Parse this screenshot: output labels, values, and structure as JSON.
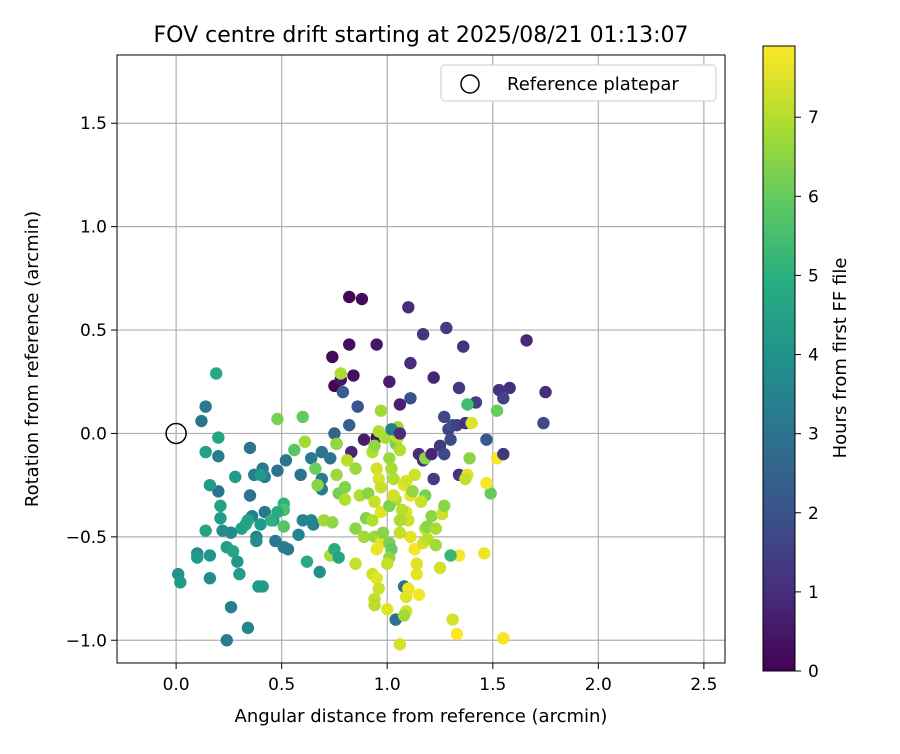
{
  "chart_data": {
    "type": "scatter",
    "title": "FOV centre drift starting at 2025/08/21 01:13:07",
    "xlabel": "Angular distance from reference (arcmin)",
    "ylabel": "Rotation from reference (arcmin)",
    "xlim": [
      -0.28,
      2.6
    ],
    "ylim": [
      -1.11,
      1.83
    ],
    "xticks": [
      0.0,
      0.5,
      1.0,
      1.5,
      2.0,
      2.5
    ],
    "xtick_labels": [
      "0.0",
      "0.5",
      "1.0",
      "1.5",
      "2.0",
      "2.5"
    ],
    "yticks": [
      -1.0,
      -0.5,
      0.0,
      0.5,
      1.0,
      1.5
    ],
    "ytick_labels": [
      "−1.0",
      "−0.5",
      "0.0",
      "0.5",
      "1.0",
      "1.5"
    ],
    "grid": true,
    "legend": {
      "position": "top-right",
      "entries": [
        {
          "label": "Reference platepar",
          "marker": "open-circle"
        }
      ]
    },
    "reference_point": {
      "x": 0.0,
      "y": 0.0
    },
    "colorbar": {
      "label": "Hours from first FF file",
      "colormap": "viridis",
      "range": [
        0,
        7.9
      ],
      "ticks": [
        0,
        1,
        2,
        3,
        4,
        5,
        6,
        7
      ],
      "tick_labels": [
        "0",
        "1",
        "2",
        "3",
        "4",
        "5",
        "6",
        "7"
      ]
    },
    "points": [
      {
        "x": 0.82,
        "y": 0.66,
        "h": 0.1
      },
      {
        "x": 0.88,
        "y": 0.65,
        "h": 0.2
      },
      {
        "x": 0.82,
        "y": 0.43,
        "h": 0.3
      },
      {
        "x": 0.95,
        "y": 0.43,
        "h": 0.5
      },
      {
        "x": 0.74,
        "y": 0.37,
        "h": 0.2
      },
      {
        "x": 0.84,
        "y": 0.28,
        "h": 0.3
      },
      {
        "x": 0.75,
        "y": 0.23,
        "h": 0.1
      },
      {
        "x": 0.78,
        "y": 0.26,
        "h": 0.4
      },
      {
        "x": 1.1,
        "y": 0.61,
        "h": 1.0
      },
      {
        "x": 1.17,
        "y": 0.48,
        "h": 1.2
      },
      {
        "x": 1.28,
        "y": 0.51,
        "h": 1.4
      },
      {
        "x": 1.36,
        "y": 0.42,
        "h": 1.1
      },
      {
        "x": 1.11,
        "y": 0.34,
        "h": 1.0
      },
      {
        "x": 1.22,
        "y": 0.27,
        "h": 0.8
      },
      {
        "x": 1.01,
        "y": 0.25,
        "h": 0.6
      },
      {
        "x": 1.66,
        "y": 0.45,
        "h": 0.9
      },
      {
        "x": 1.34,
        "y": 0.22,
        "h": 1.3
      },
      {
        "x": 1.42,
        "y": 0.15,
        "h": 1.5
      },
      {
        "x": 1.53,
        "y": 0.21,
        "h": 1.2
      },
      {
        "x": 1.58,
        "y": 0.22,
        "h": 1.1
      },
      {
        "x": 1.55,
        "y": 0.17,
        "h": 1.6
      },
      {
        "x": 1.75,
        "y": 0.2,
        "h": 1.0
      },
      {
        "x": 1.74,
        "y": 0.05,
        "h": 1.8
      },
      {
        "x": 1.47,
        "y": -0.03,
        "h": 2.2
      },
      {
        "x": 1.11,
        "y": 0.17,
        "h": 2.0
      },
      {
        "x": 1.06,
        "y": 0.14,
        "h": 0.7
      },
      {
        "x": 0.86,
        "y": 0.13,
        "h": 2.1
      },
      {
        "x": 0.79,
        "y": 0.2,
        "h": 2.3
      },
      {
        "x": 0.95,
        "y": -0.02,
        "h": 0.4
      },
      {
        "x": 0.89,
        "y": -0.03,
        "h": 0.6
      },
      {
        "x": 0.83,
        "y": -0.09,
        "h": 0.8
      },
      {
        "x": 0.82,
        "y": 0.04,
        "h": 2.4
      },
      {
        "x": 0.75,
        "y": 0.0,
        "h": 2.5
      },
      {
        "x": 0.76,
        "y": -0.05,
        "h": 2.6
      },
      {
        "x": 0.73,
        "y": -0.12,
        "h": 3.0
      },
      {
        "x": 0.69,
        "y": -0.09,
        "h": 3.1
      },
      {
        "x": 0.69,
        "y": -0.22,
        "h": 3.2
      },
      {
        "x": 0.69,
        "y": -0.27,
        "h": 3.4
      },
      {
        "x": 0.64,
        "y": -0.12,
        "h": 3.3
      },
      {
        "x": 0.59,
        "y": -0.2,
        "h": 3.0
      },
      {
        "x": 0.52,
        "y": -0.13,
        "h": 3.1
      },
      {
        "x": 0.48,
        "y": -0.18,
        "h": 3.0
      },
      {
        "x": 0.41,
        "y": -0.17,
        "h": 3.2
      },
      {
        "x": 0.37,
        "y": -0.2,
        "h": 3.3
      },
      {
        "x": 0.35,
        "y": -0.07,
        "h": 3.0
      },
      {
        "x": 0.35,
        "y": -0.3,
        "h": 2.9
      },
      {
        "x": 0.42,
        "y": -0.21,
        "h": 3.4
      },
      {
        "x": 0.2,
        "y": -0.28,
        "h": 3.0
      },
      {
        "x": 0.2,
        "y": -0.11,
        "h": 3.4
      },
      {
        "x": 0.14,
        "y": 0.13,
        "h": 3.2
      },
      {
        "x": 0.12,
        "y": 0.06,
        "h": 3.1
      },
      {
        "x": 0.2,
        "y": -0.02,
        "h": 4.6
      },
      {
        "x": 0.19,
        "y": 0.29,
        "h": 4.7
      },
      {
        "x": 0.14,
        "y": -0.09,
        "h": 4.5
      },
      {
        "x": 0.16,
        "y": -0.25,
        "h": 4.4
      },
      {
        "x": 0.21,
        "y": -0.35,
        "h": 4.6
      },
      {
        "x": 0.28,
        "y": -0.21,
        "h": 4.3
      },
      {
        "x": 0.4,
        "y": -0.2,
        "h": 4.2
      },
      {
        "x": 0.36,
        "y": -0.4,
        "h": 3.4
      },
      {
        "x": 0.42,
        "y": -0.38,
        "h": 3.2
      },
      {
        "x": 0.46,
        "y": -0.42,
        "h": 4.0
      },
      {
        "x": 0.4,
        "y": -0.44,
        "h": 4.3
      },
      {
        "x": 0.33,
        "y": -0.44,
        "h": 4.8
      },
      {
        "x": 0.31,
        "y": -0.46,
        "h": 4.5
      },
      {
        "x": 0.26,
        "y": -0.48,
        "h": 3.7
      },
      {
        "x": 0.22,
        "y": -0.47,
        "h": 3.9
      },
      {
        "x": 0.21,
        "y": -0.41,
        "h": 4.4
      },
      {
        "x": 0.14,
        "y": -0.47,
        "h": 4.6
      },
      {
        "x": 0.38,
        "y": -0.5,
        "h": 3.6
      },
      {
        "x": 0.38,
        "y": -0.52,
        "h": 3.9
      },
      {
        "x": 0.24,
        "y": -0.55,
        "h": 4.4
      },
      {
        "x": 0.27,
        "y": -0.57,
        "h": 4.6
      },
      {
        "x": 0.29,
        "y": -0.62,
        "h": 4.2
      },
      {
        "x": 0.3,
        "y": -0.68,
        "h": 4.4
      },
      {
        "x": 0.16,
        "y": -0.59,
        "h": 4.1
      },
      {
        "x": 0.1,
        "y": -0.58,
        "h": 3.8
      },
      {
        "x": 0.1,
        "y": -0.6,
        "h": 4.3
      },
      {
        "x": 0.16,
        "y": -0.7,
        "h": 3.8
      },
      {
        "x": 0.01,
        "y": -0.68,
        "h": 4.1
      },
      {
        "x": 0.02,
        "y": -0.72,
        "h": 4.3
      },
      {
        "x": 0.39,
        "y": -0.74,
        "h": 4.2
      },
      {
        "x": 0.41,
        "y": -0.74,
        "h": 4.3
      },
      {
        "x": 0.26,
        "y": -0.84,
        "h": 3.4
      },
      {
        "x": 0.34,
        "y": -0.94,
        "h": 3.6
      },
      {
        "x": 0.24,
        "y": -1.0,
        "h": 3.3
      },
      {
        "x": 0.47,
        "y": -0.52,
        "h": 3.2
      },
      {
        "x": 0.51,
        "y": -0.55,
        "h": 3.4
      },
      {
        "x": 0.58,
        "y": -0.49,
        "h": 3.5
      },
      {
        "x": 0.53,
        "y": -0.56,
        "h": 3.3
      },
      {
        "x": 0.6,
        "y": -0.42,
        "h": 3.6
      },
      {
        "x": 0.64,
        "y": -0.42,
        "h": 3.7
      },
      {
        "x": 0.65,
        "y": -0.44,
        "h": 3.5
      },
      {
        "x": 0.68,
        "y": -0.67,
        "h": 3.9
      },
      {
        "x": 0.62,
        "y": -0.62,
        "h": 4.8
      },
      {
        "x": 0.51,
        "y": -0.34,
        "h": 5.1
      },
      {
        "x": 0.51,
        "y": -0.37,
        "h": 5.6
      },
      {
        "x": 0.51,
        "y": -0.45,
        "h": 5.8
      },
      {
        "x": 0.45,
        "y": -0.42,
        "h": 5.0
      },
      {
        "x": 0.48,
        "y": -0.38,
        "h": 4.8
      },
      {
        "x": 0.34,
        "y": -0.42,
        "h": 4.6
      },
      {
        "x": 0.56,
        "y": -0.08,
        "h": 5.8
      },
      {
        "x": 0.6,
        "y": 0.08,
        "h": 6.0
      },
      {
        "x": 0.48,
        "y": 0.07,
        "h": 6.3
      },
      {
        "x": 0.61,
        "y": -0.04,
        "h": 6.8
      },
      {
        "x": 0.66,
        "y": -0.17,
        "h": 6.1
      },
      {
        "x": 0.67,
        "y": -0.25,
        "h": 6.5
      },
      {
        "x": 0.7,
        "y": -0.42,
        "h": 6.8
      },
      {
        "x": 0.74,
        "y": -0.43,
        "h": 6.6
      },
      {
        "x": 0.73,
        "y": -0.59,
        "h": 6.9
      },
      {
        "x": 0.75,
        "y": -0.56,
        "h": 4.9
      },
      {
        "x": 0.77,
        "y": -0.6,
        "h": 4.6
      },
      {
        "x": 0.77,
        "y": -0.29,
        "h": 6.2
      },
      {
        "x": 0.8,
        "y": -0.26,
        "h": 6.4
      },
      {
        "x": 0.8,
        "y": -0.32,
        "h": 7.0
      },
      {
        "x": 0.76,
        "y": -0.2,
        "h": 6.7
      },
      {
        "x": 0.76,
        "y": -0.05,
        "h": 6.6
      },
      {
        "x": 0.78,
        "y": 0.29,
        "h": 6.9
      },
      {
        "x": 0.81,
        "y": -0.13,
        "h": 7.1
      },
      {
        "x": 0.85,
        "y": -0.17,
        "h": 6.7
      },
      {
        "x": 0.87,
        "y": -0.3,
        "h": 6.9
      },
      {
        "x": 0.85,
        "y": -0.46,
        "h": 6.5
      },
      {
        "x": 0.89,
        "y": -0.5,
        "h": 6.8
      },
      {
        "x": 0.9,
        "y": -0.41,
        "h": 6.4
      },
      {
        "x": 0.85,
        "y": -0.63,
        "h": 7.2
      },
      {
        "x": 0.91,
        "y": -0.29,
        "h": 6.5
      },
      {
        "x": 0.93,
        "y": -0.09,
        "h": 7.0
      },
      {
        "x": 0.94,
        "y": -0.06,
        "h": 6.6
      },
      {
        "x": 0.96,
        "y": 0.01,
        "h": 7.0
      },
      {
        "x": 0.97,
        "y": 0.11,
        "h": 6.8
      },
      {
        "x": 0.99,
        "y": -0.02,
        "h": 6.9
      },
      {
        "x": 0.95,
        "y": -0.17,
        "h": 7.4
      },
      {
        "x": 0.96,
        "y": -0.22,
        "h": 7.5
      },
      {
        "x": 0.97,
        "y": -0.26,
        "h": 7.2
      },
      {
        "x": 0.94,
        "y": -0.33,
        "h": 7.2
      },
      {
        "x": 0.97,
        "y": -0.38,
        "h": 7.6
      },
      {
        "x": 0.93,
        "y": -0.42,
        "h": 7.0
      },
      {
        "x": 0.94,
        "y": -0.5,
        "h": 6.7
      },
      {
        "x": 0.97,
        "y": -0.5,
        "h": 6.8
      },
      {
        "x": 0.97,
        "y": -0.53,
        "h": 7.6
      },
      {
        "x": 0.95,
        "y": -0.56,
        "h": 7.7
      },
      {
        "x": 0.98,
        "y": -0.48,
        "h": 6.5
      },
      {
        "x": 1.01,
        "y": -0.53,
        "h": 6.3
      },
      {
        "x": 1.02,
        "y": -0.56,
        "h": 6.0
      },
      {
        "x": 1.01,
        "y": -0.6,
        "h": 6.6
      },
      {
        "x": 1.0,
        "y": -0.63,
        "h": 7.2
      },
      {
        "x": 0.93,
        "y": -0.68,
        "h": 7.4
      },
      {
        "x": 0.95,
        "y": -0.7,
        "h": 7.6
      },
      {
        "x": 0.96,
        "y": -0.75,
        "h": 7.3
      },
      {
        "x": 0.94,
        "y": -0.8,
        "h": 7.2
      },
      {
        "x": 0.94,
        "y": -0.83,
        "h": 7.1
      },
      {
        "x": 1.0,
        "y": -0.85,
        "h": 7.6
      },
      {
        "x": 1.06,
        "y": -1.02,
        "h": 7.4
      },
      {
        "x": 1.04,
        "y": -0.9,
        "h": 2.9
      },
      {
        "x": 1.08,
        "y": -0.74,
        "h": 2.9
      },
      {
        "x": 1.1,
        "y": -0.75,
        "h": 7.7
      },
      {
        "x": 1.09,
        "y": -0.79,
        "h": 7.5
      },
      {
        "x": 1.09,
        "y": -0.86,
        "h": 7.4
      },
      {
        "x": 1.08,
        "y": -0.88,
        "h": 6.8
      },
      {
        "x": 1.15,
        "y": -0.78,
        "h": 7.8
      },
      {
        "x": 1.14,
        "y": -0.68,
        "h": 7.6
      },
      {
        "x": 1.14,
        "y": -0.63,
        "h": 7.5
      },
      {
        "x": 1.13,
        "y": -0.56,
        "h": 7.8
      },
      {
        "x": 1.17,
        "y": -0.53,
        "h": 7.4
      },
      {
        "x": 1.18,
        "y": -0.46,
        "h": 7.0
      },
      {
        "x": 1.19,
        "y": -0.45,
        "h": 6.5
      },
      {
        "x": 1.23,
        "y": -0.46,
        "h": 6.9
      },
      {
        "x": 1.19,
        "y": -0.51,
        "h": 7.1
      },
      {
        "x": 1.23,
        "y": -0.54,
        "h": 6.8
      },
      {
        "x": 1.25,
        "y": -0.65,
        "h": 7.4
      },
      {
        "x": 1.21,
        "y": -0.4,
        "h": 6.5
      },
      {
        "x": 1.26,
        "y": -0.39,
        "h": 7.3
      },
      {
        "x": 1.27,
        "y": -0.35,
        "h": 6.5
      },
      {
        "x": 1.18,
        "y": -0.3,
        "h": 6.3
      },
      {
        "x": 1.16,
        "y": -0.33,
        "h": 7.3
      },
      {
        "x": 1.11,
        "y": -0.3,
        "h": 7.7
      },
      {
        "x": 1.09,
        "y": -0.38,
        "h": 7.5
      },
      {
        "x": 1.07,
        "y": -0.37,
        "h": 7.1
      },
      {
        "x": 1.1,
        "y": -0.42,
        "h": 7.3
      },
      {
        "x": 1.11,
        "y": -0.5,
        "h": 7.6
      },
      {
        "x": 1.06,
        "y": -0.48,
        "h": 7.2
      },
      {
        "x": 1.06,
        "y": -0.42,
        "h": 6.9
      },
      {
        "x": 1.04,
        "y": -0.32,
        "h": 7.0
      },
      {
        "x": 1.01,
        "y": -0.35,
        "h": 6.4
      },
      {
        "x": 1.03,
        "y": -0.3,
        "h": 7.4
      },
      {
        "x": 1.03,
        "y": -0.22,
        "h": 7.0
      },
      {
        "x": 1.02,
        "y": -0.17,
        "h": 6.9
      },
      {
        "x": 1.01,
        "y": -0.12,
        "h": 6.7
      },
      {
        "x": 1.04,
        "y": -0.05,
        "h": 6.3
      },
      {
        "x": 1.06,
        "y": -0.08,
        "h": 7.0
      },
      {
        "x": 1.05,
        "y": -0.02,
        "h": 7.2
      },
      {
        "x": 1.05,
        "y": 0.03,
        "h": 6.8
      },
      {
        "x": 1.02,
        "y": 0.02,
        "h": 3.3
      },
      {
        "x": 1.06,
        "y": 0.0,
        "h": 1.0
      },
      {
        "x": 1.08,
        "y": -0.25,
        "h": 7.6
      },
      {
        "x": 1.09,
        "y": -0.23,
        "h": 7.4
      },
      {
        "x": 1.13,
        "y": -0.2,
        "h": 7.3
      },
      {
        "x": 1.12,
        "y": -0.28,
        "h": 6.6
      },
      {
        "x": 1.15,
        "y": -0.1,
        "h": 1.0
      },
      {
        "x": 1.17,
        "y": -0.13,
        "h": 0.9
      },
      {
        "x": 1.18,
        "y": -0.12,
        "h": 6.5
      },
      {
        "x": 1.21,
        "y": -0.1,
        "h": 0.8
      },
      {
        "x": 1.22,
        "y": -0.22,
        "h": 1.4
      },
      {
        "x": 1.25,
        "y": -0.06,
        "h": 1.3
      },
      {
        "x": 1.29,
        "y": 0.02,
        "h": 1.6
      },
      {
        "x": 1.27,
        "y": 0.08,
        "h": 1.7
      },
      {
        "x": 1.31,
        "y": 0.04,
        "h": 2.0
      },
      {
        "x": 1.3,
        "y": -0.03,
        "h": 1.8
      },
      {
        "x": 1.27,
        "y": -0.1,
        "h": 1.7
      },
      {
        "x": 1.33,
        "y": 0.04,
        "h": 1.5
      },
      {
        "x": 1.37,
        "y": 0.05,
        "h": 1.2
      },
      {
        "x": 1.34,
        "y": -0.2,
        "h": 1.1
      },
      {
        "x": 1.38,
        "y": -0.2,
        "h": 7.6
      },
      {
        "x": 1.37,
        "y": -0.22,
        "h": 7.2
      },
      {
        "x": 1.4,
        "y": 0.05,
        "h": 7.5
      },
      {
        "x": 1.39,
        "y": -0.12,
        "h": 6.5
      },
      {
        "x": 1.38,
        "y": 0.14,
        "h": 5.5
      },
      {
        "x": 1.49,
        "y": -0.29,
        "h": 6.0
      },
      {
        "x": 1.47,
        "y": -0.24,
        "h": 7.8
      },
      {
        "x": 1.52,
        "y": 0.11,
        "h": 6.1
      },
      {
        "x": 1.52,
        "y": -0.12,
        "h": 7.8
      },
      {
        "x": 1.55,
        "y": -0.1,
        "h": 1.3
      },
      {
        "x": 1.46,
        "y": -0.58,
        "h": 7.7
      },
      {
        "x": 1.34,
        "y": -0.59,
        "h": 7.8
      },
      {
        "x": 1.3,
        "y": -0.59,
        "h": 5.3
      },
      {
        "x": 1.31,
        "y": -0.9,
        "h": 7.4
      },
      {
        "x": 1.33,
        "y": -0.97,
        "h": 7.9
      },
      {
        "x": 1.55,
        "y": -0.99,
        "h": 7.8
      }
    ]
  }
}
